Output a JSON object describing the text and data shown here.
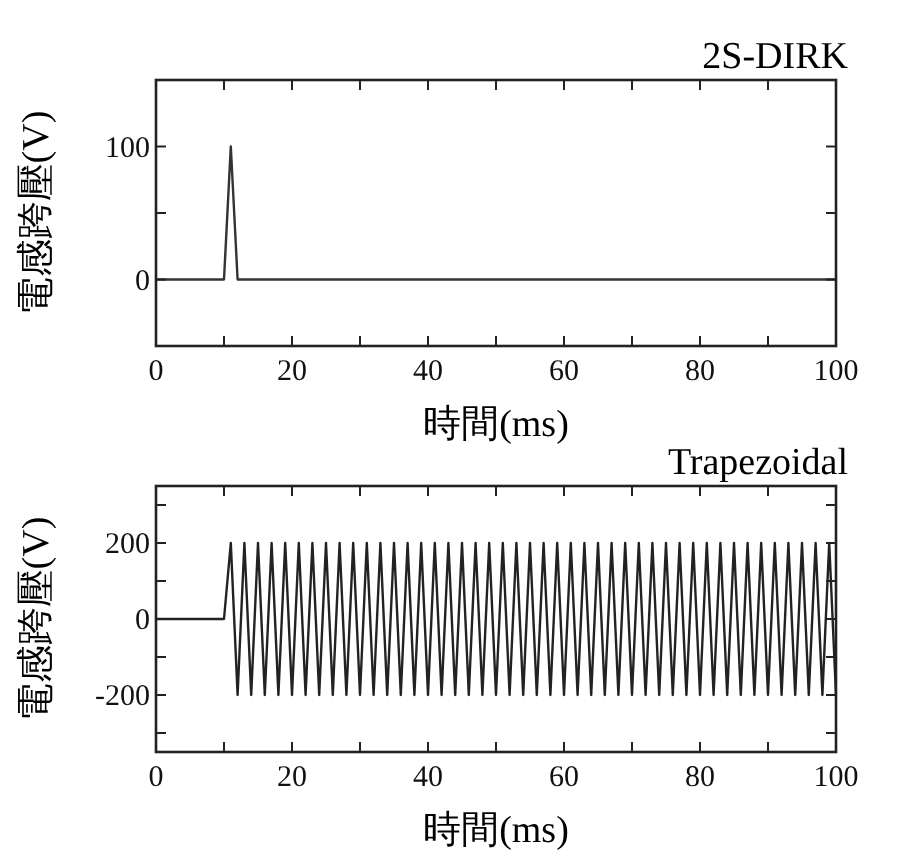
{
  "chart_data": [
    {
      "type": "line",
      "title": "2S-DIRK",
      "xlabel": "時間(ms)",
      "ylabel": "電感跨壓(V)",
      "x": [
        0,
        10,
        11,
        12,
        100
      ],
      "series": [
        {
          "color": "#333333",
          "values": [
            0,
            0,
            100,
            0,
            0
          ]
        }
      ],
      "xlim": [
        0,
        100
      ],
      "xticks": [
        0,
        {
          "value": 10,
          "label": null
        },
        20,
        {
          "value": 30,
          "label": null
        },
        40,
        {
          "value": 50,
          "label": null
        },
        60,
        {
          "value": 70,
          "label": null
        },
        80,
        {
          "value": 90,
          "label": null
        },
        100
      ],
      "ylim": [
        -50,
        150
      ],
      "yticks": [
        0,
        {
          "value": 50,
          "label": null
        },
        100
      ]
    },
    {
      "type": "line",
      "title": "Trapezoidal",
      "xlabel": "時間(ms)",
      "ylabel": "電感跨壓(V)",
      "x": [
        0,
        10,
        11,
        12,
        13,
        14,
        15,
        16,
        17,
        18,
        19,
        20,
        21,
        22,
        23,
        24,
        25,
        26,
        27,
        28,
        29,
        30,
        31,
        32,
        33,
        34,
        35,
        36,
        37,
        38,
        39,
        40,
        41,
        42,
        43,
        44,
        45,
        46,
        47,
        48,
        49,
        50,
        51,
        52,
        53,
        54,
        55,
        56,
        57,
        58,
        59,
        60,
        61,
        62,
        63,
        64,
        65,
        66,
        67,
        68,
        69,
        70,
        71,
        72,
        73,
        74,
        75,
        76,
        77,
        78,
        79,
        80,
        81,
        82,
        83,
        84,
        85,
        86,
        87,
        88,
        89,
        90,
        91,
        92,
        93,
        94,
        95,
        96,
        97,
        98,
        99,
        100
      ],
      "series": [
        {
          "color": "#222222",
          "values": [
            0,
            0,
            200,
            -200,
            200,
            -200,
            200,
            -200,
            200,
            -200,
            200,
            -200,
            200,
            -200,
            200,
            -200,
            200,
            -200,
            200,
            -200,
            200,
            -200,
            200,
            -200,
            200,
            -200,
            200,
            -200,
            200,
            -200,
            200,
            -200,
            200,
            -200,
            200,
            -200,
            200,
            -200,
            200,
            -200,
            200,
            -200,
            200,
            -200,
            200,
            -200,
            200,
            -200,
            200,
            -200,
            200,
            -200,
            200,
            -200,
            200,
            -200,
            200,
            -200,
            200,
            -200,
            200,
            -200,
            200,
            -200,
            200,
            -200,
            200,
            -200,
            200,
            -200,
            200,
            -200,
            200,
            -200,
            200,
            -200,
            200,
            -200,
            200,
            -200,
            200,
            -200,
            200,
            -200,
            200,
            -200,
            200,
            -200,
            200,
            -200,
            200,
            -200
          ]
        }
      ],
      "xlim": [
        0,
        100
      ],
      "xticks": [
        0,
        {
          "value": 10,
          "label": null
        },
        20,
        {
          "value": 30,
          "label": null
        },
        40,
        {
          "value": 50,
          "label": null
        },
        60,
        {
          "value": 70,
          "label": null
        },
        80,
        {
          "value": 90,
          "label": null
        },
        100
      ],
      "ylim": [
        -350,
        350
      ],
      "yticks": [
        {
          "value": -300,
          "label": null
        },
        -200,
        {
          "value": -100,
          "label": null
        },
        0,
        {
          "value": 100,
          "label": null
        },
        200,
        {
          "value": 300,
          "label": null
        }
      ]
    }
  ]
}
